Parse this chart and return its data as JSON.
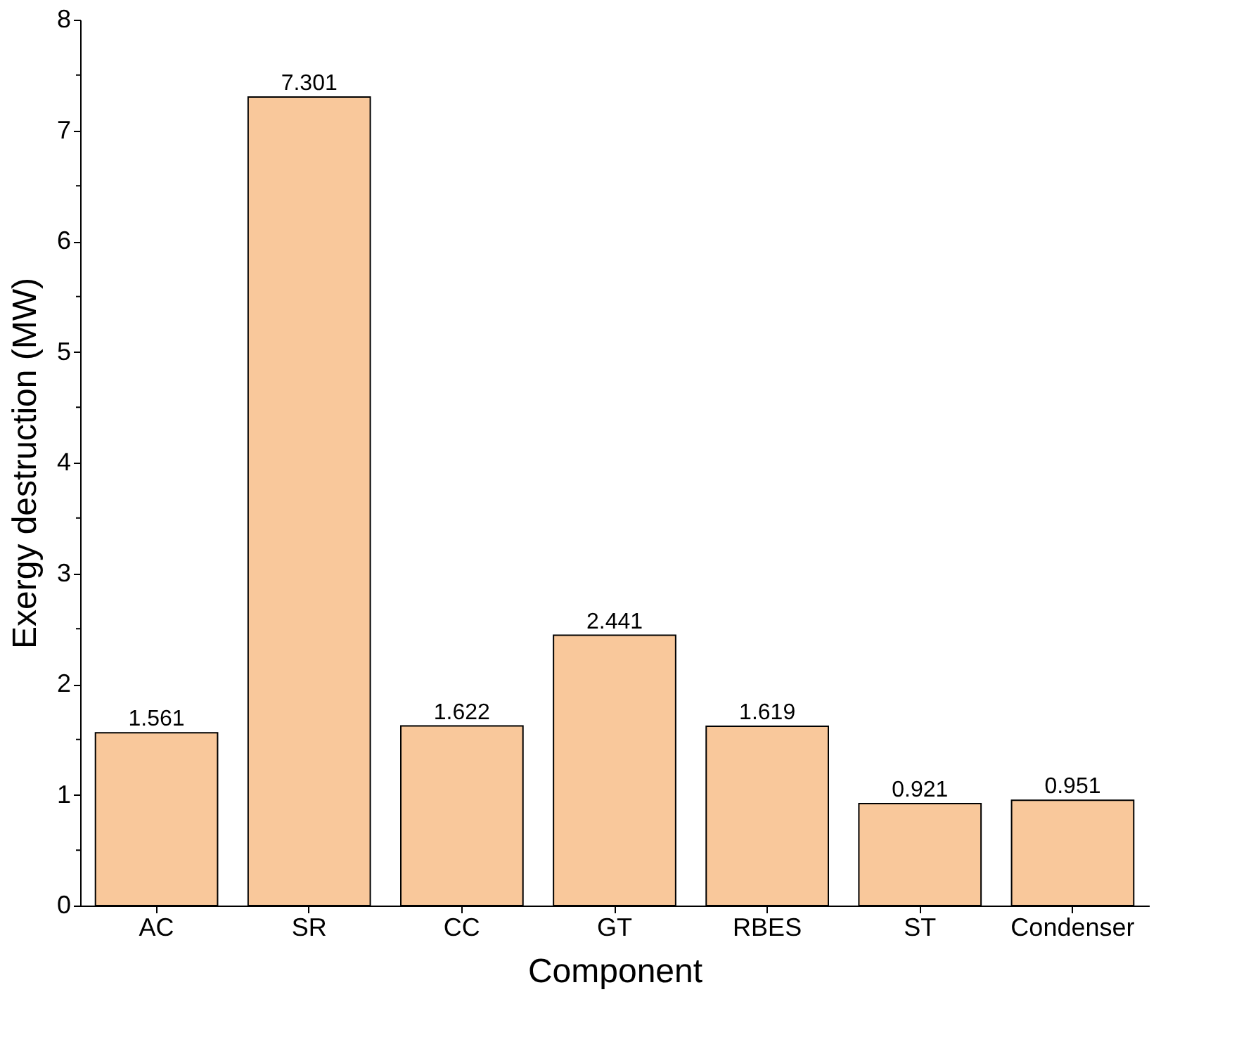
{
  "chart_data": {
    "type": "bar",
    "xlabel": "Component",
    "ylabel": "Exergy destruction (MW)",
    "categories": [
      "AC",
      "SR",
      "CC",
      "GT",
      "RBES",
      "ST",
      "Condenser"
    ],
    "values": [
      1.561,
      7.301,
      1.622,
      2.441,
      1.619,
      0.921,
      0.951
    ],
    "color": "#f9c89b",
    "ylim": [
      0,
      8
    ],
    "yticks": [
      0,
      {
        "value": 0.5,
        "label": null
      },
      1,
      {
        "value": 1.5,
        "label": null
      },
      2,
      {
        "value": 2.5,
        "label": null
      },
      3,
      {
        "value": 3.5,
        "label": null
      },
      4,
      {
        "value": 4.5,
        "label": null
      },
      5,
      {
        "value": 5.5,
        "label": null
      },
      6,
      {
        "value": 6.5,
        "label": null
      },
      7,
      {
        "value": 7.5,
        "label": null
      },
      8
    ],
    "data_labels": true,
    "grid": false
  }
}
